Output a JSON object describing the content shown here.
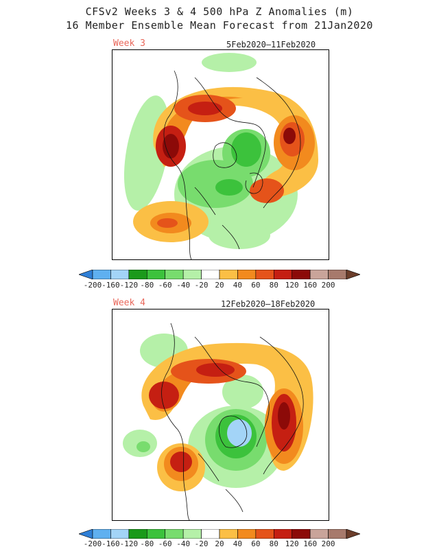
{
  "title": {
    "line1": "CFSv2 Weeks 3 & 4 500 hPa Z Anomalies (m)",
    "line2": "16 Member Ensemble Mean Forecast from 21Jan2020"
  },
  "panels": [
    {
      "label": "Week 3",
      "dates": "5Feb2020–11Feb2020"
    },
    {
      "label": "Week 4",
      "dates": "12Feb2020–18Feb2020"
    }
  ],
  "colorbar": {
    "labels": [
      "-200",
      "-160",
      "-120",
      "-80",
      "-60",
      "-40",
      "-20",
      "20",
      "40",
      "60",
      "80",
      "120",
      "160",
      "200"
    ],
    "colors": [
      "#2f7fd6",
      "#5fb0f0",
      "#a3d4f7",
      "#1a9a1a",
      "#3cc23c",
      "#78dc6e",
      "#b5f0a8",
      "#ffffff",
      "#fbbf45",
      "#f28a1e",
      "#e5531a",
      "#c51f12",
      "#8c0a08",
      "#c9a49a",
      "#a77a6c",
      "#6b3d2a"
    ]
  }
}
